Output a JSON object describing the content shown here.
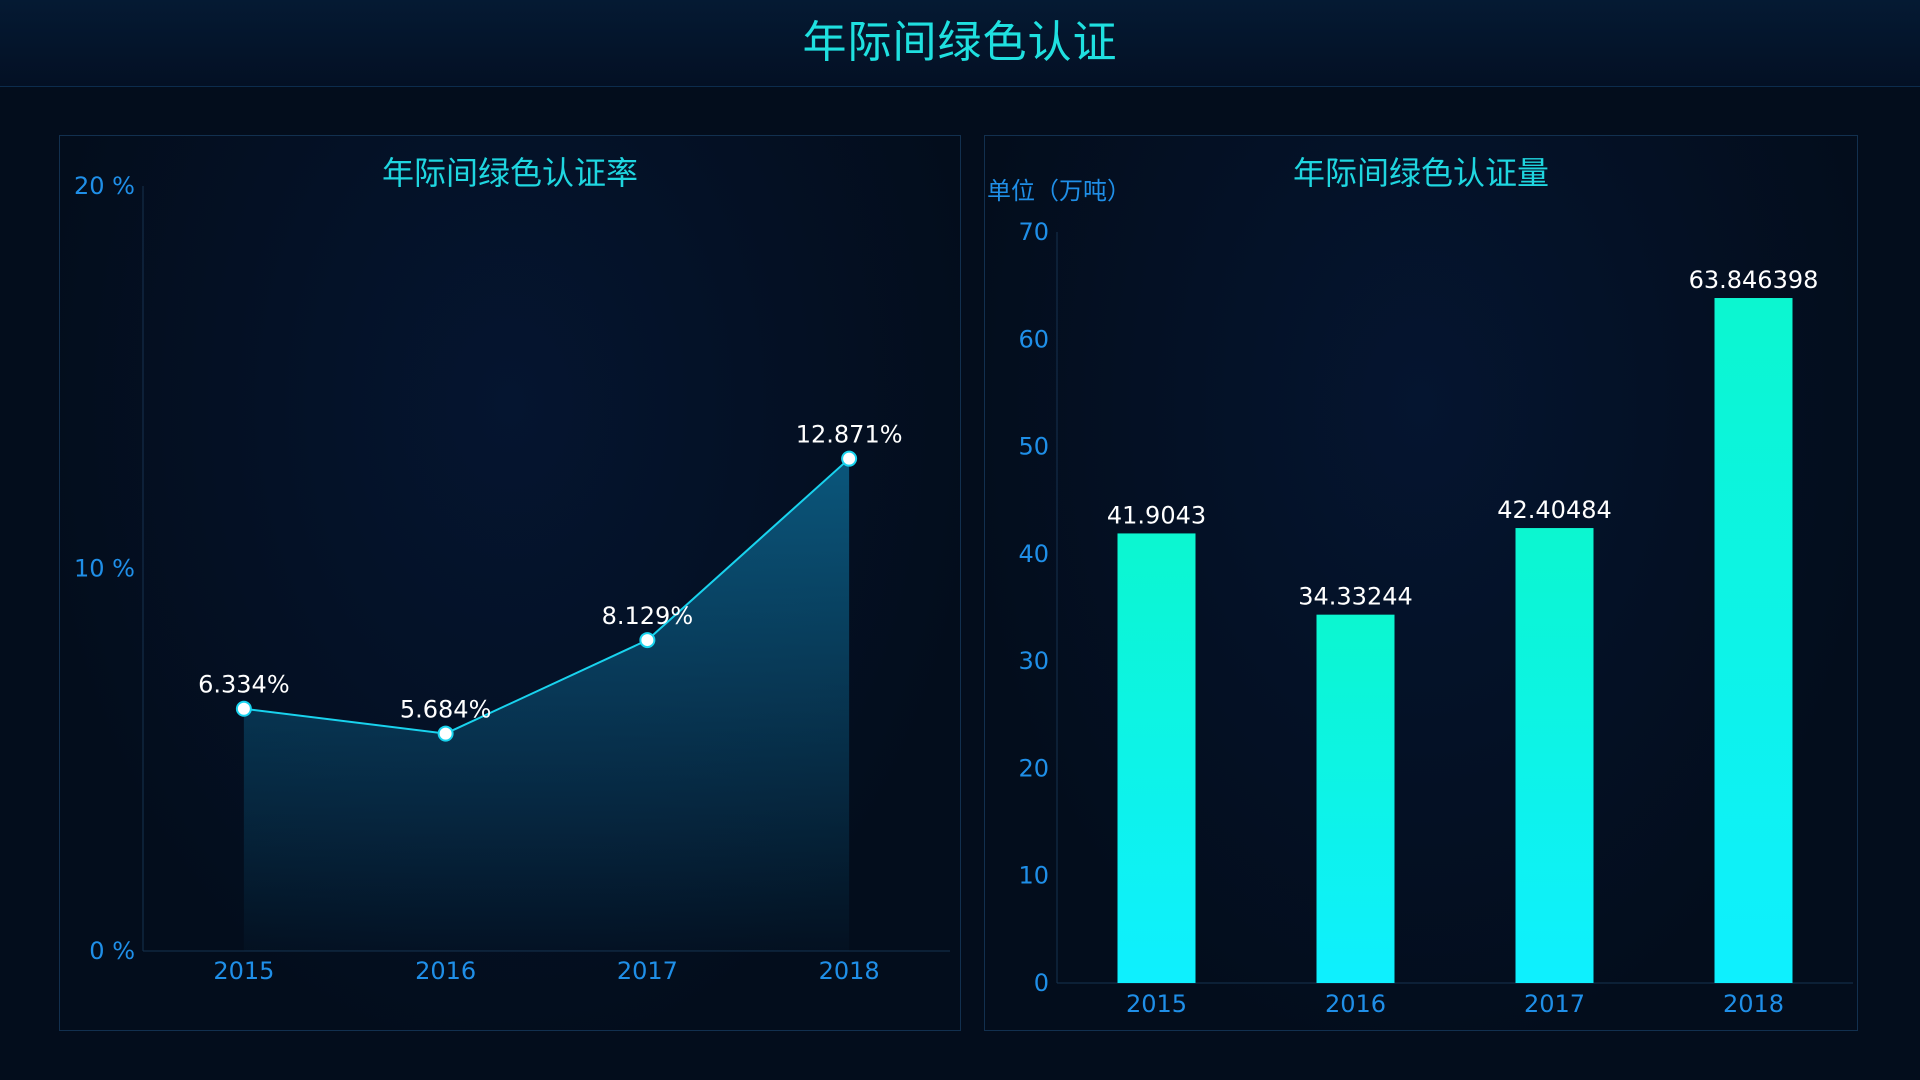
{
  "page": {
    "title": "年际间绿色认证"
  },
  "colors": {
    "background": "#030d1c",
    "title": "#1fe0e0",
    "axis_text": "#1f8fe8",
    "line": "#19d3ee",
    "area_top": "#0b5a80",
    "bar_top": "#0cf6d0",
    "bar_bottom": "#0ef0ff",
    "data_label": "#ffffff"
  },
  "chart_data": [
    {
      "type": "area",
      "title": "年际间绿色认证率",
      "categories": [
        "2015",
        "2016",
        "2017",
        "2018"
      ],
      "values": [
        6.334,
        5.684,
        8.129,
        12.871
      ],
      "value_labels": [
        "6.334%",
        "5.684%",
        "8.129%",
        "12.871%"
      ],
      "ylim": [
        0,
        20
      ],
      "yticks": [
        0,
        10,
        20
      ],
      "ytick_labels": [
        "0 %",
        "10 %",
        "20 %"
      ],
      "grid": false,
      "legend": false
    },
    {
      "type": "bar",
      "title": "年际间绿色认证量",
      "unit_label": "单位（万吨）",
      "categories": [
        "2015",
        "2016",
        "2017",
        "2018"
      ],
      "values": [
        41.9043,
        34.33244,
        42.40484,
        63.846398
      ],
      "value_labels": [
        "41.9043",
        "34.33244",
        "42.40484",
        "63.846398"
      ],
      "ylim": [
        0,
        70
      ],
      "yticks": [
        0,
        10,
        20,
        30,
        40,
        50,
        60,
        70
      ],
      "ytick_labels": [
        "0",
        "10",
        "20",
        "30",
        "40",
        "50",
        "60",
        "70"
      ],
      "grid": false,
      "legend": false
    }
  ]
}
